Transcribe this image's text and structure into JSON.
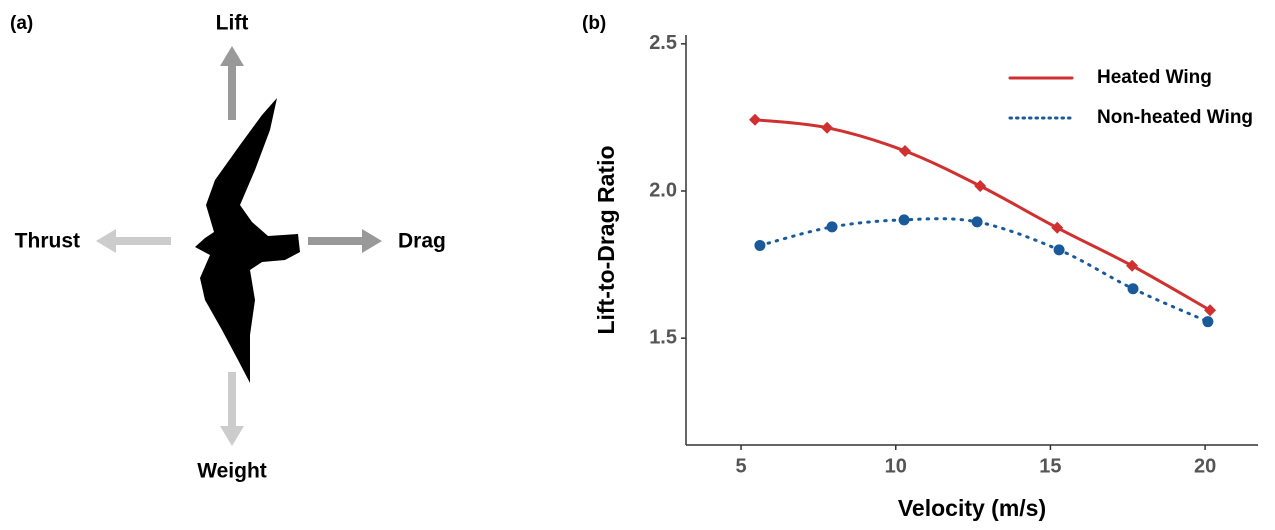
{
  "panel_a": {
    "label": "(a)",
    "lift": "Lift",
    "weight": "Weight",
    "thrust": "Thrust",
    "drag": "Drag"
  },
  "chart_data": {
    "type": "line",
    "panel_label": "(b)",
    "x_label": "Velocity (m/s)",
    "y_label": "Lift-to-Drag Ratio",
    "xlim": [
      3.22,
      21.71
    ],
    "ylim": [
      1.137,
      2.53
    ],
    "xticks": [
      5,
      10,
      15,
      20
    ],
    "yticks": [
      1.5,
      {
        "value": 2,
        "label": "2.0"
      },
      2.5
    ],
    "legend": "top-right",
    "series": [
      {
        "name": "Heated Wing",
        "color": "#d03030",
        "style": "solid",
        "marker": "diamond",
        "x": [
          5.45,
          7.78,
          10.3,
          12.73,
          15.22,
          17.64,
          20.16
        ],
        "values": [
          2.242,
          2.215,
          2.136,
          2.017,
          1.875,
          1.746,
          1.595
        ]
      },
      {
        "name": "Non-heated Wing",
        "color": "#1a5a9a",
        "style": "dotted",
        "marker": "circle",
        "x": [
          5.61,
          7.94,
          10.27,
          12.63,
          15.28,
          17.67,
          20.09
        ],
        "values": [
          1.815,
          1.878,
          1.902,
          1.895,
          1.8,
          1.668,
          1.556
        ]
      }
    ]
  }
}
